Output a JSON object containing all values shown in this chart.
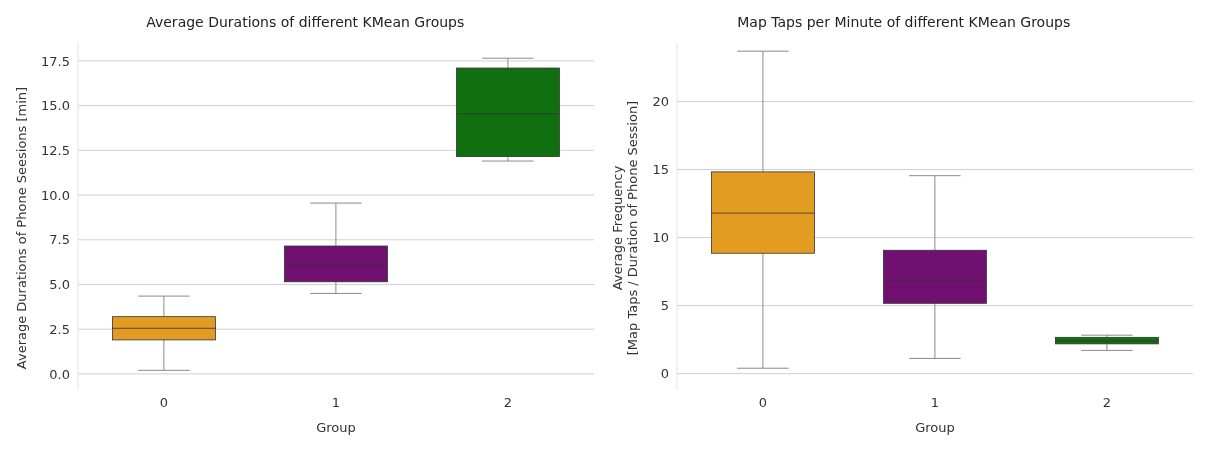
{
  "chart_data": [
    {
      "type": "box",
      "title": "Average Durations of different KMean Groups",
      "xlabel": "Group",
      "ylabel": "Average Durations of Phone Seesions [min]",
      "categories": [
        "0",
        "1",
        "2"
      ],
      "colors": [
        "#e39c22",
        "#701070",
        "#107010"
      ],
      "boxes": [
        {
          "low": 0.2,
          "q1": 1.9,
          "median": 2.55,
          "q3": 3.2,
          "high": 4.35
        },
        {
          "low": 4.5,
          "q1": 5.15,
          "median": 6.05,
          "q3": 7.15,
          "high": 9.55
        },
        {
          "low": 11.9,
          "q1": 12.15,
          "median": 14.55,
          "q3": 17.1,
          "high": 17.65
        }
      ],
      "ylim": [
        -0.9,
        18.5
      ],
      "yticks": [
        {
          "value": 0,
          "label": "0.0"
        },
        2.5,
        {
          "value": 5,
          "label": "5.0"
        },
        7.5,
        {
          "value": 10,
          "label": "10.0"
        },
        12.5,
        {
          "value": 15,
          "label": "15.0"
        },
        17.5
      ],
      "grid": "y"
    },
    {
      "type": "box",
      "title": "Map Taps per Minute of different KMean Groups",
      "xlabel": "Group",
      "ylabel": "Average Frequency\n[Map Taps / Duration of Phone Session]",
      "categories": [
        "0",
        "1",
        "2"
      ],
      "colors": [
        "#e39c22",
        "#701070",
        "#107010"
      ],
      "boxes": [
        {
          "low": 0.4,
          "q1": 8.85,
          "median": 11.8,
          "q3": 14.83,
          "high": 23.7
        },
        {
          "low": 1.12,
          "q1": 5.17,
          "median": 6.85,
          "q3": 9.07,
          "high": 14.55
        },
        {
          "low": 1.71,
          "q1": 2.19,
          "median": 2.4,
          "q3": 2.67,
          "high": 2.83
        }
      ],
      "ylim": [
        -1.2,
        24.3
      ],
      "yticks": [
        0,
        5,
        10,
        15,
        20
      ],
      "grid": "y"
    }
  ]
}
